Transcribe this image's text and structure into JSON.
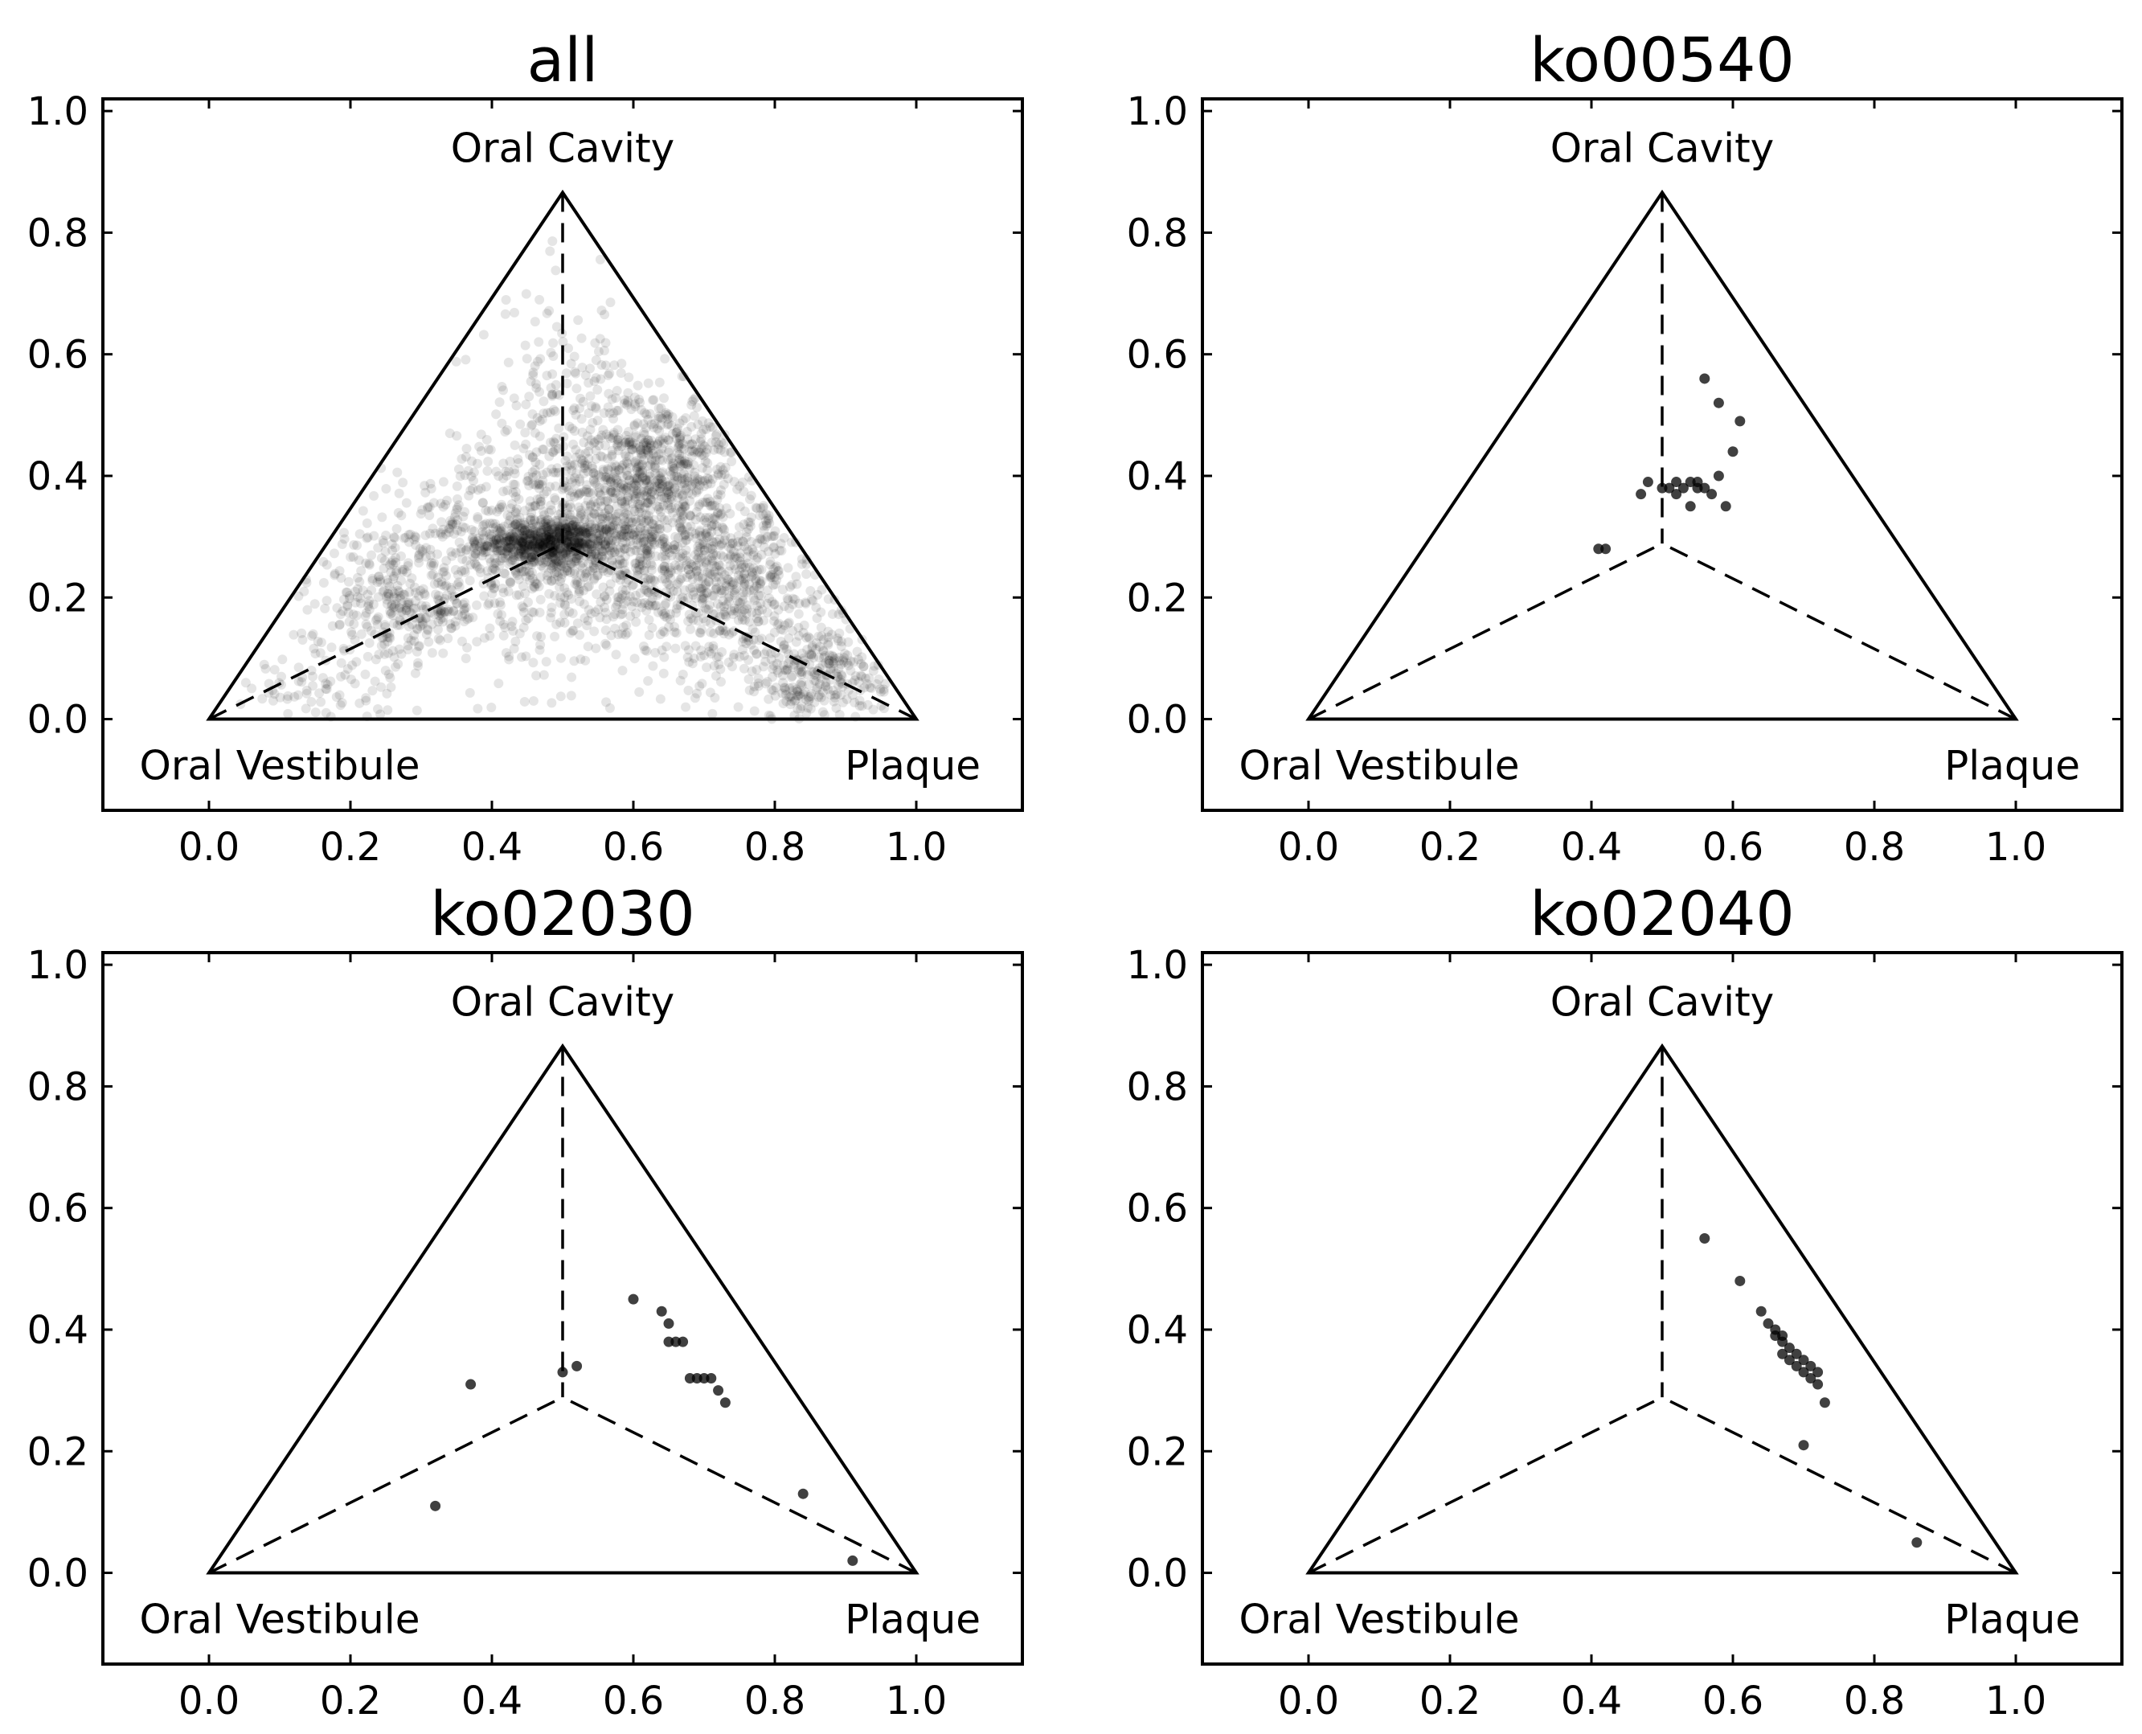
{
  "chart_data": [
    {
      "type": "scatter",
      "title": "all",
      "xlim": [
        -0.15,
        1.15
      ],
      "ylim": [
        -0.15,
        1.02
      ],
      "xticks": [
        "0.0",
        "0.2",
        "0.4",
        "0.6",
        "0.8",
        "1.0"
      ],
      "yticks": [
        "0.0",
        "0.2",
        "0.4",
        "0.6",
        "0.8",
        "1.0"
      ],
      "vertex_labels": {
        "top": "Oral Cavity",
        "left": "Oral Vestibule",
        "right": "Plaque"
      },
      "point_opacity": 0.1,
      "points": [],
      "clusters": [
        {
          "cx": 0.48,
          "cy": 0.29,
          "sx": 0.05,
          "sy": 0.018,
          "n": 600
        },
        {
          "cx": 0.53,
          "cy": 0.3,
          "sx": 0.14,
          "sy": 0.07,
          "n": 900
        },
        {
          "cx": 0.64,
          "cy": 0.42,
          "sx": 0.05,
          "sy": 0.06,
          "n": 500
        },
        {
          "cx": 0.74,
          "cy": 0.22,
          "sx": 0.08,
          "sy": 0.07,
          "n": 500
        },
        {
          "cx": 0.87,
          "cy": 0.07,
          "sx": 0.07,
          "sy": 0.04,
          "n": 300
        },
        {
          "cx": 0.27,
          "cy": 0.18,
          "sx": 0.06,
          "sy": 0.04,
          "n": 250
        },
        {
          "cx": 0.5,
          "cy": 0.45,
          "sx": 0.06,
          "sy": 0.12,
          "n": 300
        },
        {
          "cx": 0.15,
          "cy": 0.05,
          "sx": 0.07,
          "sy": 0.03,
          "n": 80
        },
        {
          "cx": 0.5,
          "cy": 0.2,
          "sx": 0.25,
          "sy": 0.1,
          "n": 400
        }
      ]
    },
    {
      "type": "scatter",
      "title": "ko00540",
      "xlim": [
        -0.15,
        1.15
      ],
      "ylim": [
        -0.15,
        1.02
      ],
      "xticks": [
        "0.0",
        "0.2",
        "0.4",
        "0.6",
        "0.8",
        "1.0"
      ],
      "yticks": [
        "0.0",
        "0.2",
        "0.4",
        "0.6",
        "0.8",
        "1.0"
      ],
      "vertex_labels": {
        "top": "Oral Cavity",
        "left": "Oral Vestibule",
        "right": "Plaque"
      },
      "point_opacity": 0.75,
      "points": [
        [
          0.56,
          0.56
        ],
        [
          0.58,
          0.52
        ],
        [
          0.61,
          0.49
        ],
        [
          0.6,
          0.44
        ],
        [
          0.41,
          0.28
        ],
        [
          0.42,
          0.28
        ],
        [
          0.47,
          0.37
        ],
        [
          0.48,
          0.39
        ],
        [
          0.5,
          0.38
        ],
        [
          0.51,
          0.38
        ],
        [
          0.52,
          0.39
        ],
        [
          0.53,
          0.38
        ],
        [
          0.54,
          0.39
        ],
        [
          0.55,
          0.38
        ],
        [
          0.56,
          0.38
        ],
        [
          0.57,
          0.37
        ],
        [
          0.58,
          0.4
        ],
        [
          0.59,
          0.35
        ],
        [
          0.54,
          0.35
        ],
        [
          0.52,
          0.37
        ],
        [
          0.55,
          0.39
        ]
      ],
      "clusters": []
    },
    {
      "type": "scatter",
      "title": "ko02030",
      "xlim": [
        -0.15,
        1.15
      ],
      "ylim": [
        -0.15,
        1.02
      ],
      "xticks": [
        "0.0",
        "0.2",
        "0.4",
        "0.6",
        "0.8",
        "1.0"
      ],
      "yticks": [
        "0.0",
        "0.2",
        "0.4",
        "0.6",
        "0.8",
        "1.0"
      ],
      "vertex_labels": {
        "top": "Oral Cavity",
        "left": "Oral Vestibule",
        "right": "Plaque"
      },
      "point_opacity": 0.75,
      "points": [
        [
          0.6,
          0.45
        ],
        [
          0.64,
          0.43
        ],
        [
          0.65,
          0.41
        ],
        [
          0.65,
          0.38
        ],
        [
          0.66,
          0.38
        ],
        [
          0.67,
          0.38
        ],
        [
          0.68,
          0.32
        ],
        [
          0.69,
          0.32
        ],
        [
          0.7,
          0.32
        ],
        [
          0.71,
          0.32
        ],
        [
          0.72,
          0.3
        ],
        [
          0.73,
          0.28
        ],
        [
          0.37,
          0.31
        ],
        [
          0.32,
          0.11
        ],
        [
          0.5,
          0.33
        ],
        [
          0.52,
          0.34
        ],
        [
          0.84,
          0.13
        ],
        [
          0.91,
          0.02
        ]
      ],
      "clusters": []
    },
    {
      "type": "scatter",
      "title": "ko02040",
      "xlim": [
        -0.15,
        1.15
      ],
      "ylim": [
        -0.15,
        1.02
      ],
      "xticks": [
        "0.0",
        "0.2",
        "0.4",
        "0.6",
        "0.8",
        "1.0"
      ],
      "yticks": [
        "0.0",
        "0.2",
        "0.4",
        "0.6",
        "0.8",
        "1.0"
      ],
      "vertex_labels": {
        "top": "Oral Cavity",
        "left": "Oral Vestibule",
        "right": "Plaque"
      },
      "point_opacity": 0.75,
      "points": [
        [
          0.56,
          0.55
        ],
        [
          0.61,
          0.48
        ],
        [
          0.64,
          0.43
        ],
        [
          0.65,
          0.41
        ],
        [
          0.66,
          0.39
        ],
        [
          0.67,
          0.38
        ],
        [
          0.67,
          0.36
        ],
        [
          0.68,
          0.37
        ],
        [
          0.68,
          0.35
        ],
        [
          0.69,
          0.34
        ],
        [
          0.69,
          0.36
        ],
        [
          0.7,
          0.33
        ],
        [
          0.7,
          0.35
        ],
        [
          0.71,
          0.32
        ],
        [
          0.71,
          0.34
        ],
        [
          0.72,
          0.31
        ],
        [
          0.72,
          0.33
        ],
        [
          0.73,
          0.28
        ],
        [
          0.7,
          0.21
        ],
        [
          0.86,
          0.05
        ],
        [
          0.66,
          0.4
        ],
        [
          0.67,
          0.39
        ]
      ],
      "clusters": []
    }
  ]
}
